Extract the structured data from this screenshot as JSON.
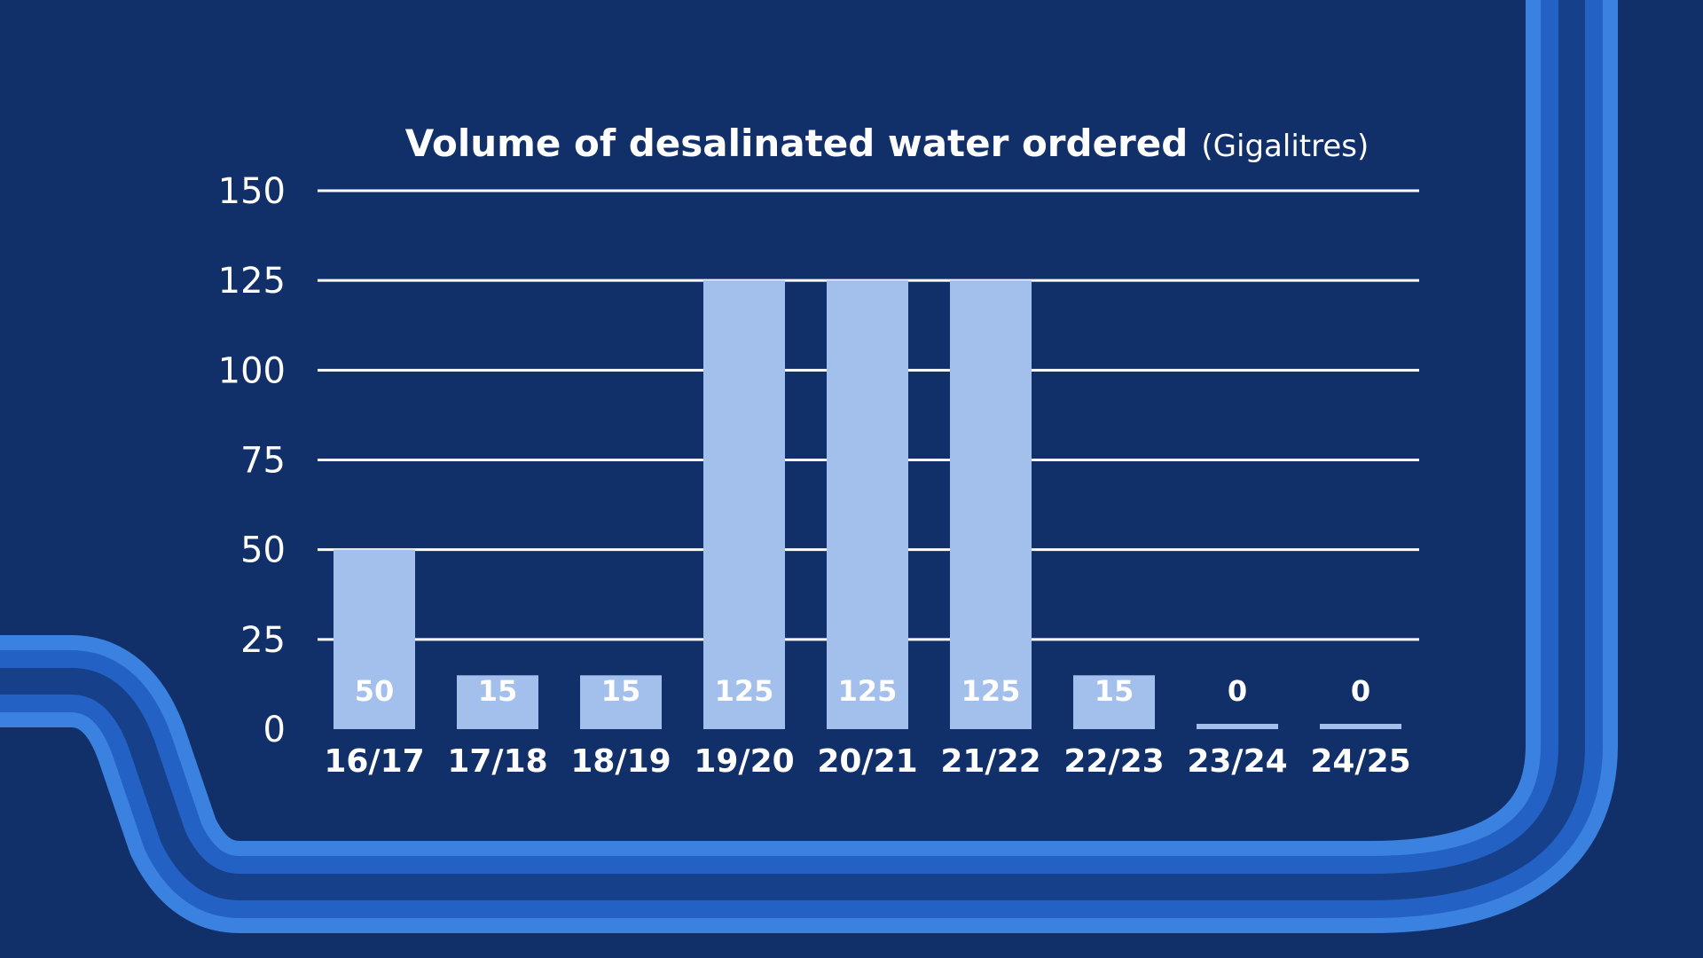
{
  "colors": {
    "background": "#112f69",
    "bar": "#a3bfec",
    "grid": "#ffffff",
    "text": "#ffffff",
    "pipe_outer": "#3b82e0",
    "pipe_inner": "#13306c"
  },
  "chart_data": {
    "type": "bar",
    "title": "Volume of desalinated water ordered",
    "unit_label": "(Gigalitres)",
    "categories": [
      "16/17",
      "17/18",
      "18/19",
      "19/20",
      "20/21",
      "21/22",
      "22/23",
      "23/24",
      "24/25"
    ],
    "values": [
      50,
      15,
      15,
      125,
      125,
      125,
      15,
      0,
      0
    ],
    "data_labels": [
      "50",
      "15",
      "15",
      "125",
      "125",
      "125",
      "15",
      "0",
      "0"
    ],
    "y_ticks": [
      0,
      25,
      50,
      75,
      100,
      125,
      150
    ],
    "ylim": [
      0,
      150
    ],
    "grid": true,
    "legend": "none"
  }
}
